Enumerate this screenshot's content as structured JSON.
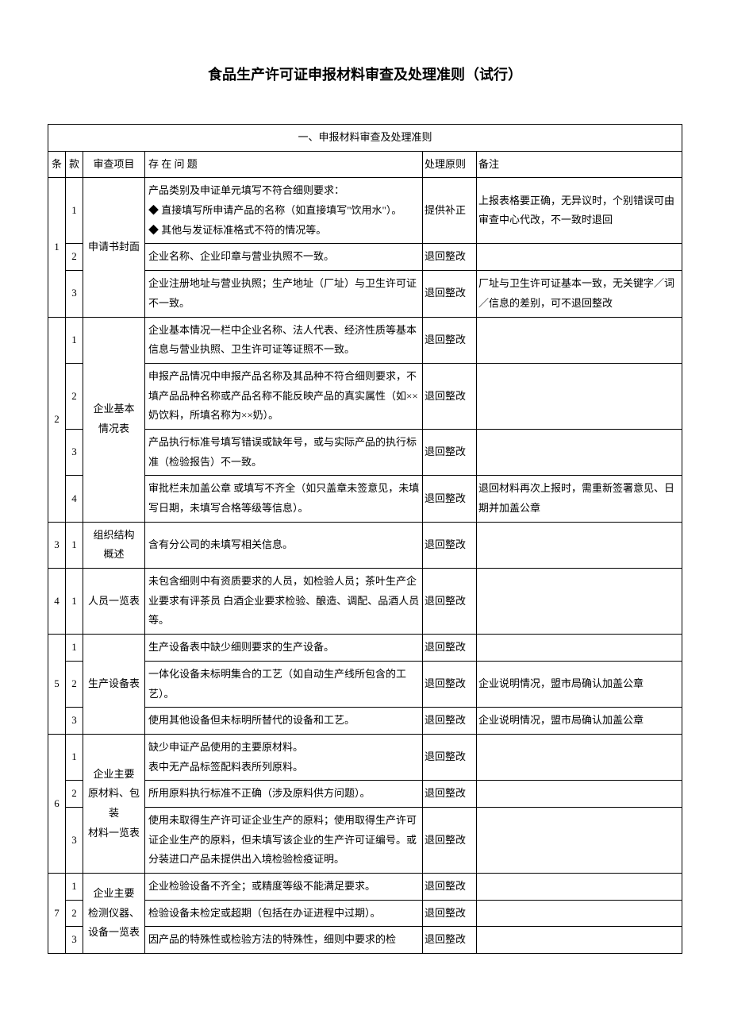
{
  "title": "食品生产许可证申报材料审查及处理准则（试行）",
  "section_header": "一、申报材料审查及处理准则",
  "columns": {
    "tiao": "条",
    "kuan": "款",
    "item": "审查项目",
    "issue": "存 在 问 题",
    "action": "处理原则",
    "note": "备注"
  },
  "rows": [
    {
      "tiao": "1",
      "kuan": "1",
      "item": "申请书封面",
      "tiao_span": 3,
      "item_span": 3,
      "issue": "产品类别及申证单元填写不符合细则要求：\n◆ 直接填写所申请产品的名称（如直接填写\"饮用水\"）。\n◆ 其他与发证标准格式不符的情况等。",
      "action": "提供补正",
      "note": "上报表格要正确，无异议时，个别错误可由审查中心代改，不一致时退回"
    },
    {
      "kuan": "2",
      "issue": "企业名称、企业印章与营业执照不一致。",
      "action": "退回整改",
      "note": ""
    },
    {
      "kuan": "3",
      "issue": "企业注册地址与营业执照；生产地址（厂址）与卫生许可证不一致。",
      "action": "退回整改",
      "note": "厂址与卫生许可证基本一致，无关键字／词／信息的差别，可不退回整改"
    },
    {
      "tiao": "2",
      "kuan": "1",
      "item": "企业基本\n情况表",
      "tiao_span": 4,
      "item_span": 4,
      "issue": "企业基本情况一栏中企业名称、法人代表、经济性质等基本信息与营业执照、卫生许可证等证照不一致。",
      "action": "退回整改",
      "note": ""
    },
    {
      "kuan": "2",
      "issue": "申报产品情况中申报产品名称及其品种不符合细则要求，不填产品品种名称或产品名称不能反映产品的真实属性（如××奶饮料，所填名称为××奶）。",
      "action": "退回整改",
      "note": ""
    },
    {
      "kuan": "3",
      "issue": "产品执行标准号填写错误或缺年号，或与实际产品的执行标准（检验报告）不一致。",
      "action": "退回整改",
      "note": ""
    },
    {
      "kuan": "4",
      "issue": "审批栏未加盖公章 或填写不齐全（如只盖章未签意见，未填写日期，未填写合格等级等信息）。",
      "action": "退回整改",
      "note": "退回材料再次上报时，需重新签署意见、日期并加盖公章"
    },
    {
      "tiao": "3",
      "kuan": "1",
      "item": "组织结构\n概述",
      "tiao_span": 1,
      "item_span": 1,
      "issue": "含有分公司的未填写相关信息。",
      "action": "退回整改",
      "note": ""
    },
    {
      "tiao": "4",
      "kuan": "1",
      "item": "人员一览表",
      "tiao_span": 1,
      "item_span": 1,
      "issue": "未包含细则中有资质要求的人员，如检验人员；茶叶生产企业要求有评茶员 白酒企业要求检验、酿造、调配、品酒人员等。",
      "action": "退回整改",
      "note": ""
    },
    {
      "tiao": "5",
      "kuan": "1",
      "item": "生产设备表",
      "tiao_span": 3,
      "item_span": 3,
      "issue": "生产设备表中缺少细则要求的生产设备。",
      "action": "退回整改",
      "note": ""
    },
    {
      "kuan": "2",
      "issue": "一体化设备未标明集合的工艺（如自动生产线所包含的工艺）。",
      "action": "退回整改",
      "note": "企业说明情况，盟市局确认加盖公章"
    },
    {
      "kuan": "3",
      "issue": "使用其他设备但未标明所替代的设备和工艺。",
      "action": "退回整改",
      "note": "企业说明情况，盟市局确认加盖公章"
    },
    {
      "tiao": "6",
      "kuan": "1",
      "item": "企业主要\n原材料、包\n装\n材料一览表",
      "tiao_span": 3,
      "item_span": 3,
      "issue": "缺少申证产品使用的主要原材料。\n表中无产品标签配料表所列原料。",
      "action": "退回整改",
      "note": ""
    },
    {
      "kuan": "2",
      "issue": "所用原料执行标准不正确（涉及原料供方问题）。",
      "action": "退回整改",
      "note": ""
    },
    {
      "kuan": "3",
      "issue": "使用未取得生产许可证企业生产的原料；使用取得生产许可证企业生产的原料，但未填写该企业的生产许可证编号。或分装进口产品未提供出入境检验检疫证明。",
      "action": "退回整改",
      "note": ""
    },
    {
      "tiao": "7",
      "kuan": "1",
      "item": "企业主要\n检测仪器、\n设备一览表",
      "tiao_span": 3,
      "item_span": 3,
      "issue": "企业检验设备不齐全；或精度等级不能满足要求。",
      "action": "退回整改",
      "note": ""
    },
    {
      "kuan": "2",
      "issue": "检验设备未检定或超期（包括在办证进程中过期）。",
      "action": "退回整改",
      "note": ""
    },
    {
      "kuan": "3",
      "issue": "因产品的特殊性或检验方法的特殊性，细则中要求的检",
      "action": "退回整改",
      "note": ""
    }
  ]
}
